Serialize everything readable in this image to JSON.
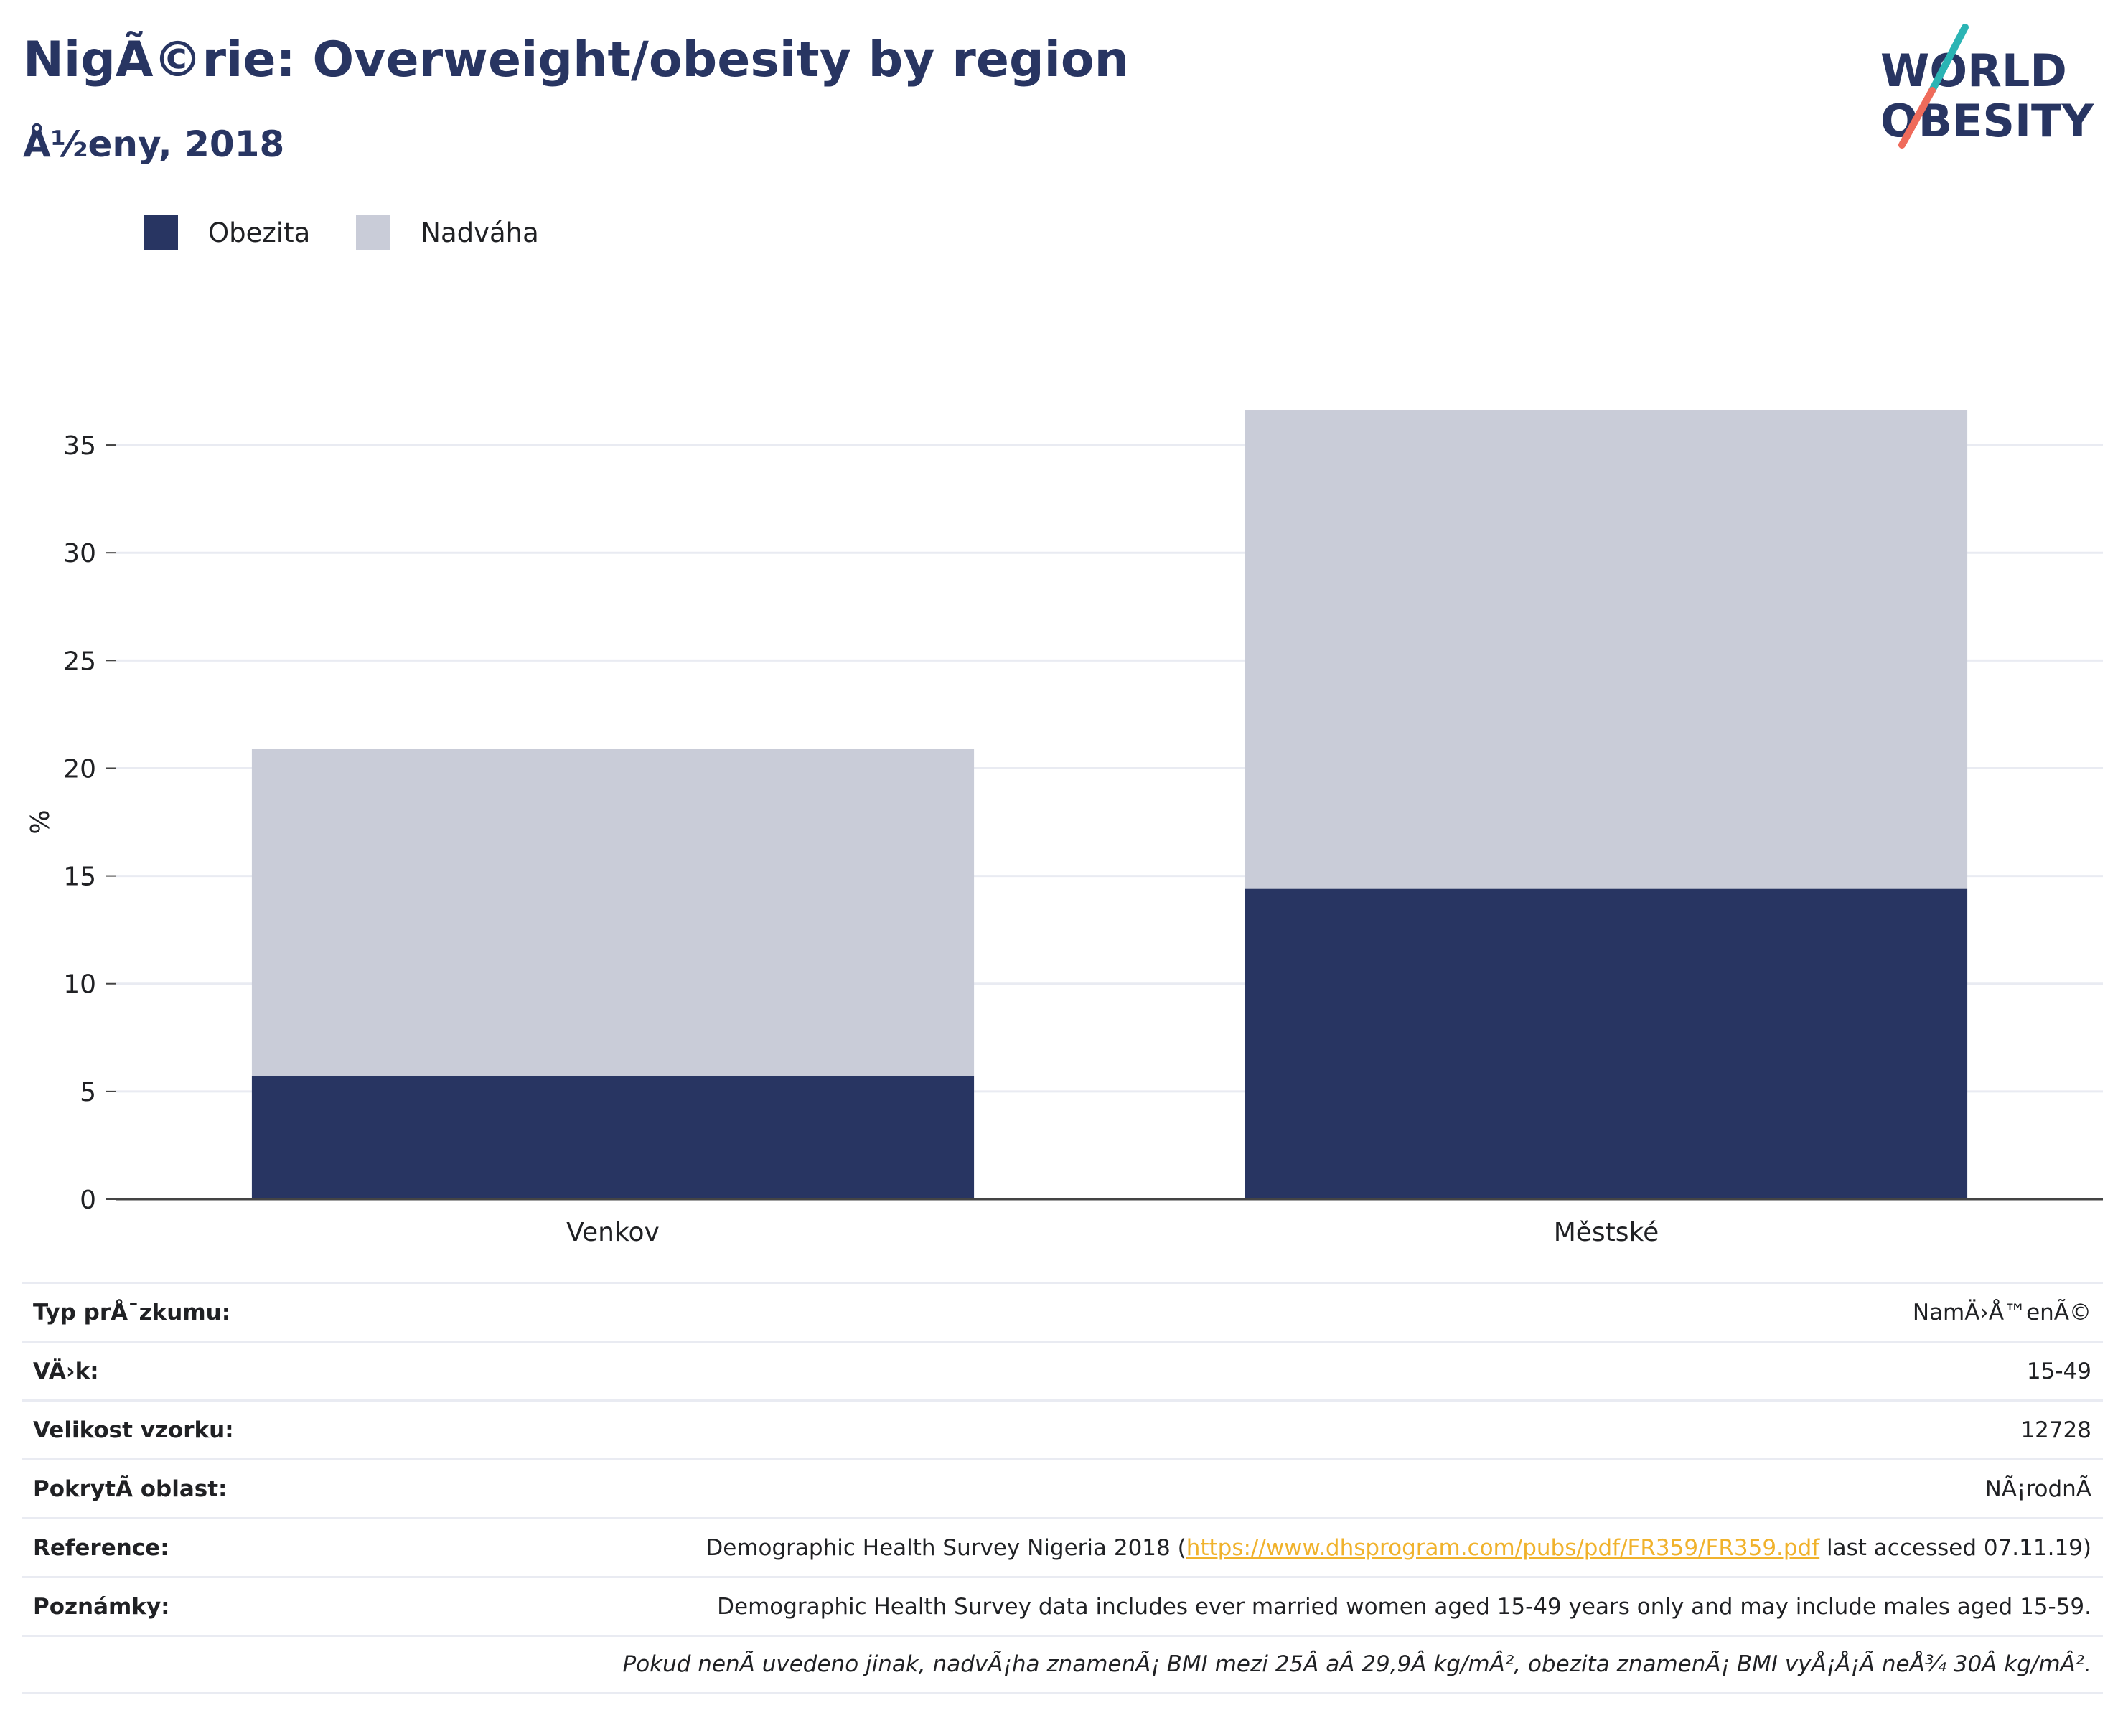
{
  "header": {
    "title": "NigÃ©rie: Overweight/obesity by region",
    "subtitle": "Å½eny, 2018"
  },
  "logo": {
    "line1": "WORLD",
    "line2": "OBESITY",
    "accent_colors": [
      "#2bb4b4",
      "#ef6b5b"
    ]
  },
  "colors": {
    "obesity": "#283562",
    "overweight": "#c9ccd8",
    "text_dark": "#283562",
    "link": "#f0b22c"
  },
  "legend": [
    {
      "label": "Obezita",
      "color": "#283562"
    },
    {
      "label": "Nadváha",
      "color": "#c9ccd8"
    }
  ],
  "chart_data": {
    "type": "bar",
    "stacked": true,
    "categories": [
      "Venkov",
      "Městské"
    ],
    "series": [
      {
        "name": "Obezita",
        "values": [
          5.7,
          14.4
        ]
      },
      {
        "name": "Nadváha",
        "values": [
          15.2,
          22.2
        ]
      }
    ],
    "ylabel": "%",
    "ylim": [
      0,
      37
    ],
    "yticks": [
      0,
      5,
      10,
      15,
      20,
      25,
      30,
      35
    ],
    "grid": true,
    "legend_position": "top-left"
  },
  "meta": {
    "rows": [
      {
        "label": "Typ prÅ¯zkumu:",
        "value": "NamÄ›Å™enÃ©"
      },
      {
        "label": "VÄ›k:",
        "value": "15-49"
      },
      {
        "label": "Velikost vzorku:",
        "value": "12728"
      },
      {
        "label": "PokrytÃ­ oblast:",
        "value": "NÃ¡rodnÃ­"
      },
      {
        "label": "Reference:",
        "value_prefix": "Demographic Health Survey Nigeria 2018 (",
        "link": "https://www.dhsprogram.com/pubs/pdf/FR359/FR359.pdf",
        "value_suffix": " last accessed 07.11.19)"
      },
      {
        "label": "Poznámky:",
        "value": "Demographic Health Survey data includes ever married women aged 15-49 years only and may include males aged 15-59."
      },
      {
        "label": "",
        "value": "Pokud nenÃ­ uvedeno jinak, nadvÃ¡ha znamenÃ¡ BMI mezi 25Â aÂ 29,9Â kg/mÂ², obezita znamenÃ¡ BMI vyÅ¡Å¡Ã­ neÅ¾ 30Â kg/mÂ²."
      }
    ]
  }
}
